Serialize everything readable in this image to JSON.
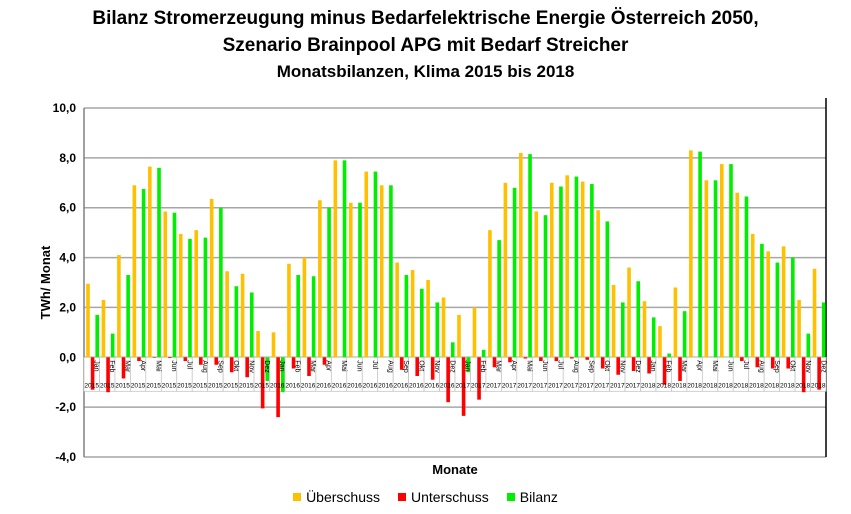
{
  "chart_data": {
    "type": "bar",
    "title": "Bilanz Stromerzeugung minus Bedarfelektrische Energie Österreich 2050,",
    "subtitle": "Szenario Brainpool APG mit Bedarf Streicher",
    "subtitle2": "Monatsbilanzen, Klima 2015 bis 2018",
    "xlabel": "Monate",
    "ylabel": "TWh/ Monat",
    "ylim": [
      -4,
      10
    ],
    "yticks": [
      "-4,0",
      "-2,0",
      "0,0",
      "2,0",
      "4,0",
      "6,0",
      "8,0",
      "10,0"
    ],
    "grid": true,
    "legend_placement": "bottom",
    "months": [
      "Jan",
      "Feb",
      "Mar",
      "Apr",
      "Mai",
      "Jun",
      "Jul",
      "Aug",
      "Sep",
      "Okt",
      "Nov",
      "Dez"
    ],
    "years": [
      "2015",
      "2016",
      "2017",
      "2018"
    ],
    "series": [
      {
        "name": "Überschuss",
        "color": "#FFC000",
        "values": [
          2.95,
          2.3,
          4.1,
          6.9,
          7.65,
          5.85,
          4.95,
          5.1,
          6.35,
          3.45,
          3.35,
          1.05,
          1.0,
          3.75,
          4.0,
          6.3,
          7.9,
          6.2,
          7.45,
          6.9,
          3.8,
          3.5,
          3.1,
          2.4,
          1.7,
          2.0,
          5.1,
          7.0,
          8.2,
          5.85,
          7.0,
          7.3,
          7.05,
          5.9,
          2.9,
          3.6,
          2.25,
          1.25,
          2.8,
          8.3,
          7.1,
          7.75,
          6.6,
          4.95,
          4.25,
          4.45,
          2.3,
          3.55
        ]
      },
      {
        "name": "Unterschuss",
        "color": "#FF0000",
        "values": [
          -1.3,
          -1.4,
          -0.85,
          -0.15,
          -0.02,
          -0.03,
          -0.15,
          -0.3,
          -0.3,
          -0.6,
          -0.8,
          -2.05,
          -2.4,
          -0.45,
          -0.75,
          -0.3,
          0,
          0,
          0,
          0,
          -0.5,
          -0.75,
          -0.9,
          -1.8,
          -2.35,
          -1.7,
          -0.4,
          -0.2,
          -0.05,
          -0.15,
          -0.15,
          -0.05,
          -0.1,
          -0.45,
          -0.7,
          -0.55,
          -0.65,
          -1.1,
          -0.95,
          0,
          0,
          0,
          -0.15,
          -0.4,
          -0.45,
          -0.45,
          -1.4,
          -1.3
        ]
      },
      {
        "name": "Bilanz",
        "color": "#00EE00",
        "values": [
          1.7,
          0.95,
          3.3,
          6.75,
          7.6,
          5.8,
          4.75,
          4.8,
          6.0,
          2.85,
          2.6,
          -0.95,
          -1.4,
          3.3,
          3.25,
          6.0,
          7.9,
          6.2,
          7.45,
          6.9,
          3.3,
          2.75,
          2.2,
          0.6,
          -0.6,
          0.3,
          4.7,
          6.8,
          8.15,
          5.7,
          6.85,
          7.25,
          6.95,
          5.45,
          2.2,
          3.05,
          1.6,
          0.15,
          1.85,
          8.25,
          7.1,
          7.75,
          6.45,
          4.55,
          3.8,
          4.0,
          0.95,
          2.2
        ]
      }
    ]
  }
}
